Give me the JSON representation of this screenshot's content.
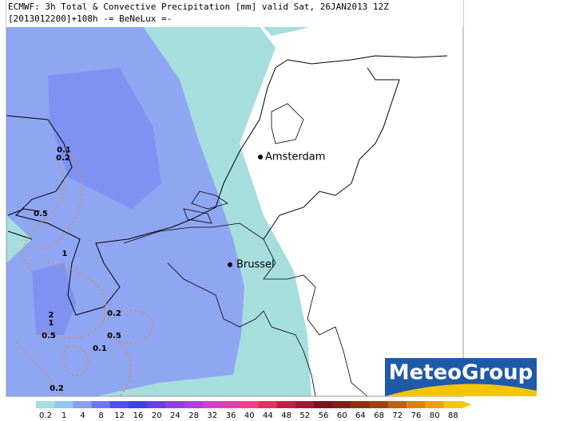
{
  "header": {
    "line1": "ECMWF: 3h Total & Convective Precipitation [mm] valid Sat, 26JAN2013 12Z",
    "line2": "[2013012200]+108h  -= BeNeLux =-"
  },
  "cities": [
    {
      "label": "Amsterdam"
    },
    {
      "label": "Brussel"
    }
  ],
  "contour_labels": [
    "0.1",
    "0.2",
    "0.5",
    "1",
    "2",
    "1",
    "0.5",
    "0.2",
    "0.5",
    "0.1",
    "0.2"
  ],
  "colorbar": {
    "labels": [
      "0.2",
      "1",
      "4",
      "8",
      "12",
      "16",
      "20",
      "24",
      "28",
      "32",
      "36",
      "40",
      "44",
      "48",
      "52",
      "56",
      "60",
      "64",
      "68",
      "72",
      "76",
      "80",
      "88"
    ],
    "colors": [
      "#a0e0e0",
      "#90c8f0",
      "#8aa0f0",
      "#7078f0",
      "#5050f0",
      "#4040e0",
      "#6a40e0",
      "#9040e0",
      "#b040e0",
      "#d040d0",
      "#e040b0",
      "#f04090",
      "#e03060",
      "#c02040",
      "#a01830",
      "#801020",
      "#802010",
      "#903010",
      "#a04010",
      "#c06010",
      "#e08010",
      "#f0a010",
      "#f0c800"
    ]
  },
  "logo": {
    "text": "MeteoGroup"
  }
}
